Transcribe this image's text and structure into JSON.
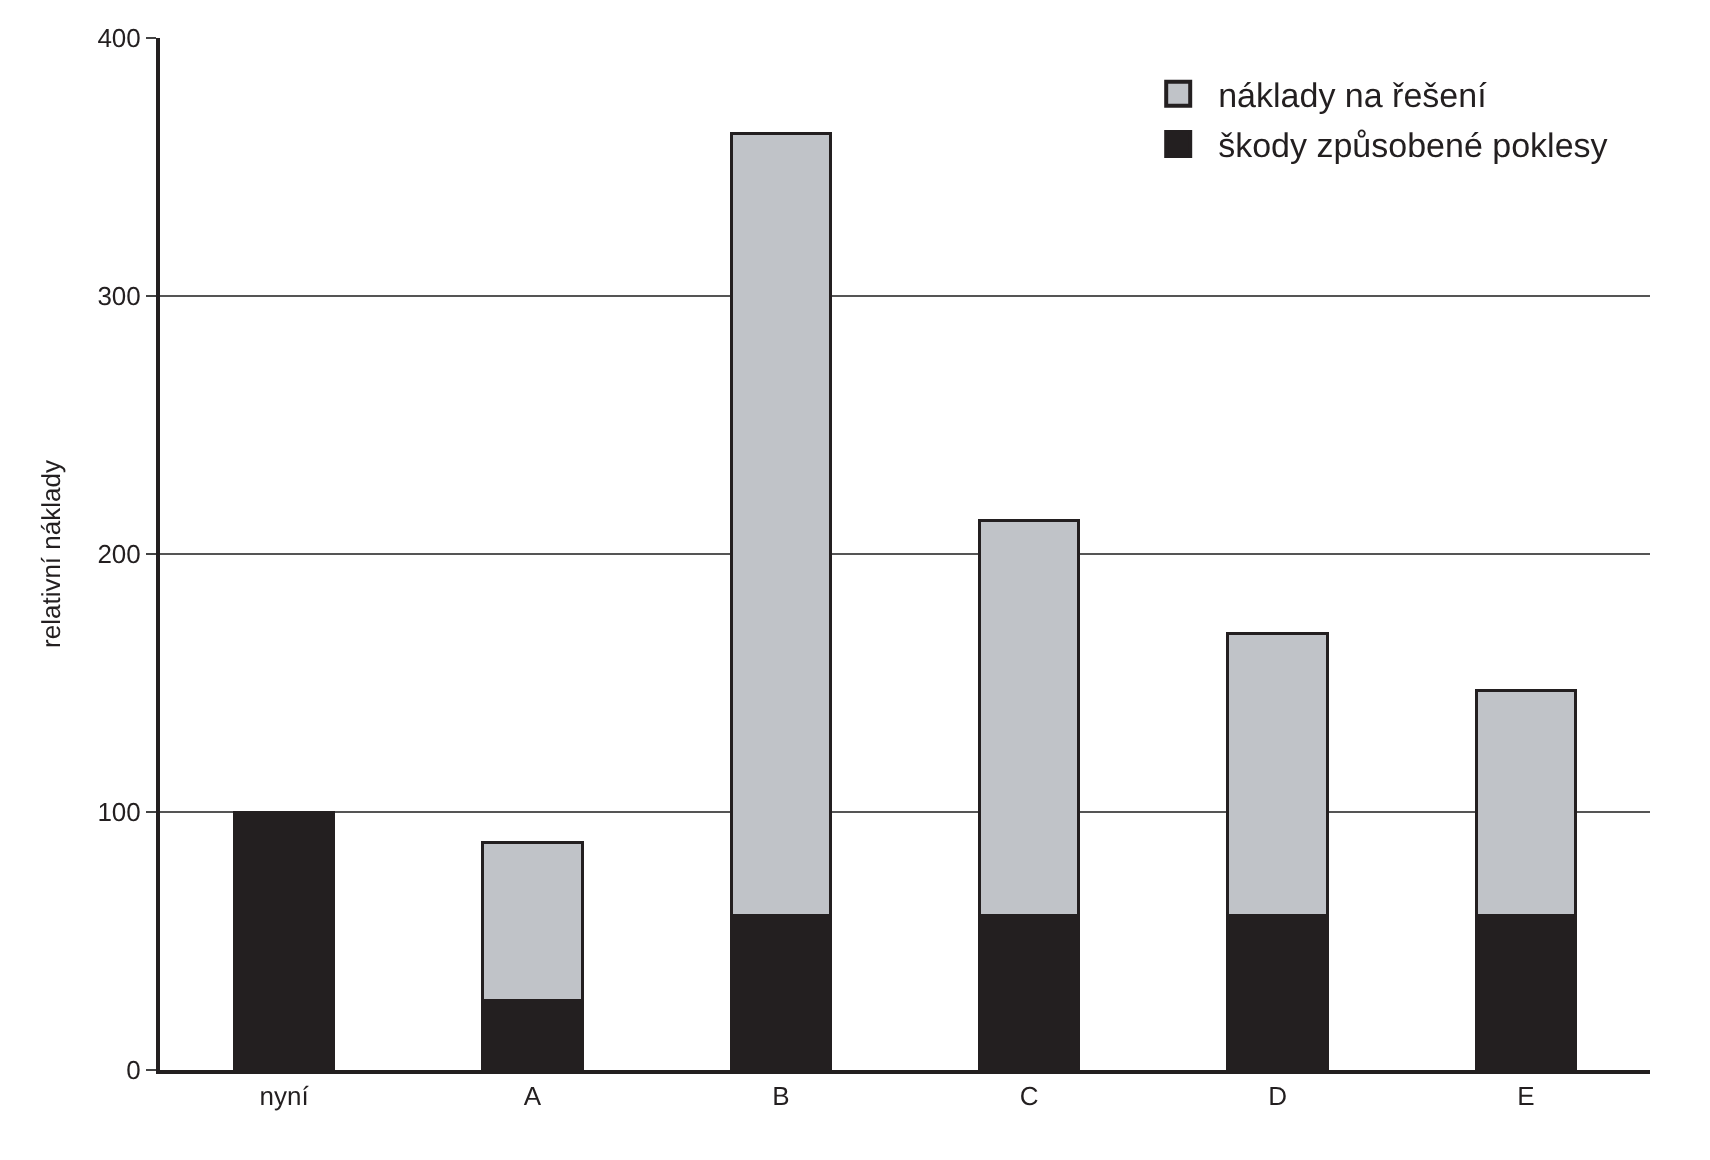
{
  "chart_data": {
    "type": "bar",
    "stacked": true,
    "ylabel": "relativní náklady",
    "categories": [
      "nyní",
      "A",
      "B",
      "C",
      "D",
      "E"
    ],
    "series": [
      {
        "name": "škody způsobené poklesy",
        "color": "#231f20",
        "values": [
          100,
          27,
          60,
          60,
          60,
          60
        ]
      },
      {
        "name": "náklady na řešení",
        "color": "#c0c3c8",
        "values": [
          null,
          61,
          303,
          153,
          109,
          87
        ]
      }
    ],
    "ylim": [
      0,
      400
    ],
    "yticks": [
      0,
      100,
      200,
      300,
      400
    ],
    "grid": "y",
    "legend": "top right"
  }
}
